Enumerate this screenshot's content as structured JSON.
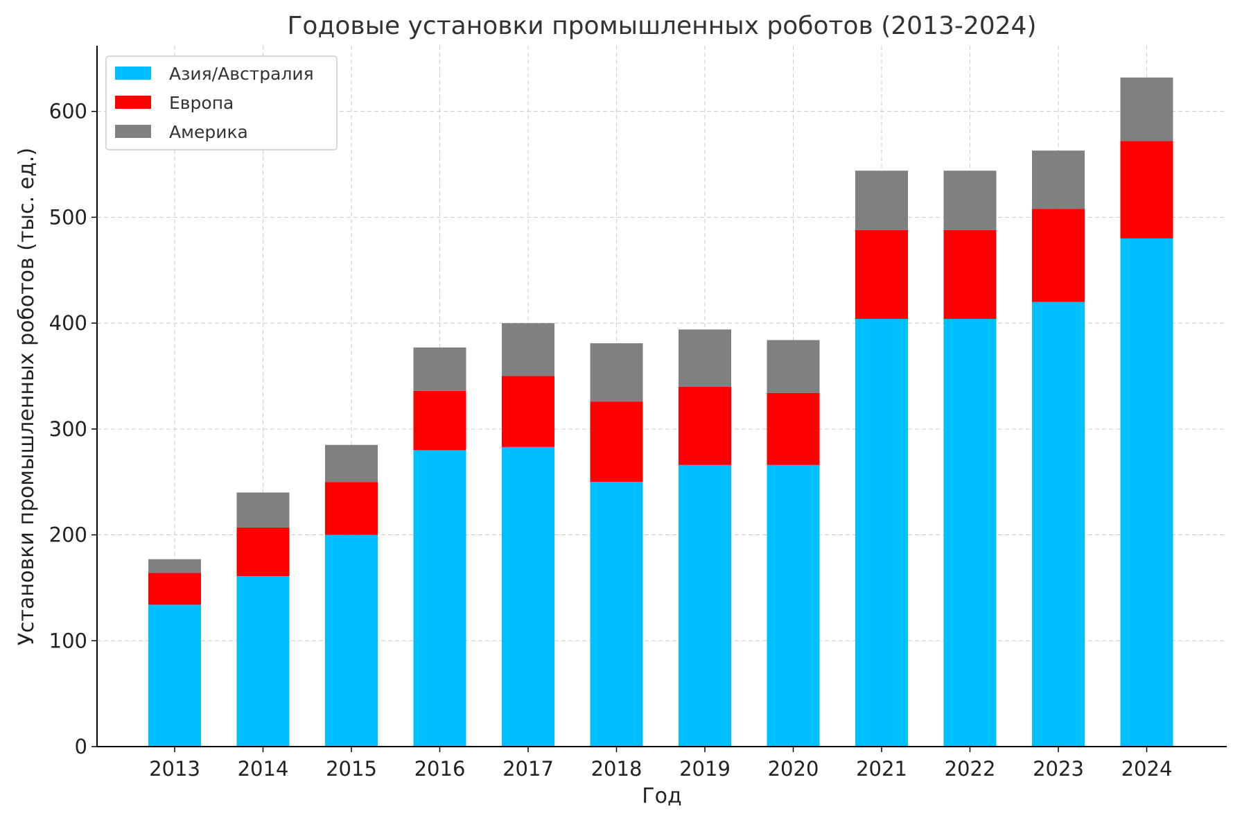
{
  "chart_data": {
    "type": "bar",
    "stacked": true,
    "title": "Годовые установки промышленных роботов (2013-2024)",
    "xlabel": "Год",
    "ylabel": "Установки промышленных роботов (тыс. ед.)",
    "categories": [
      "2013",
      "2014",
      "2015",
      "2016",
      "2017",
      "2018",
      "2019",
      "2020",
      "2021",
      "2022",
      "2023",
      "2024"
    ],
    "series": [
      {
        "name": "Азия/Австралия",
        "color": "#00bfff",
        "values": [
          134,
          161,
          200,
          280,
          283,
          250,
          266,
          266,
          404,
          404,
          420,
          480
        ]
      },
      {
        "name": "Европа",
        "color": "#ff0000",
        "values": [
          30,
          46,
          50,
          56,
          67,
          76,
          74,
          68,
          84,
          84,
          88,
          92
        ]
      },
      {
        "name": "Америка",
        "color": "#808080",
        "values": [
          13,
          33,
          35,
          41,
          50,
          55,
          54,
          50,
          56,
          56,
          55,
          60
        ]
      }
    ],
    "ylim": [
      0,
      662
    ],
    "yticks": [
      0,
      100,
      200,
      300,
      400,
      500,
      600
    ],
    "grid": true,
    "legend_position": "top-left"
  }
}
